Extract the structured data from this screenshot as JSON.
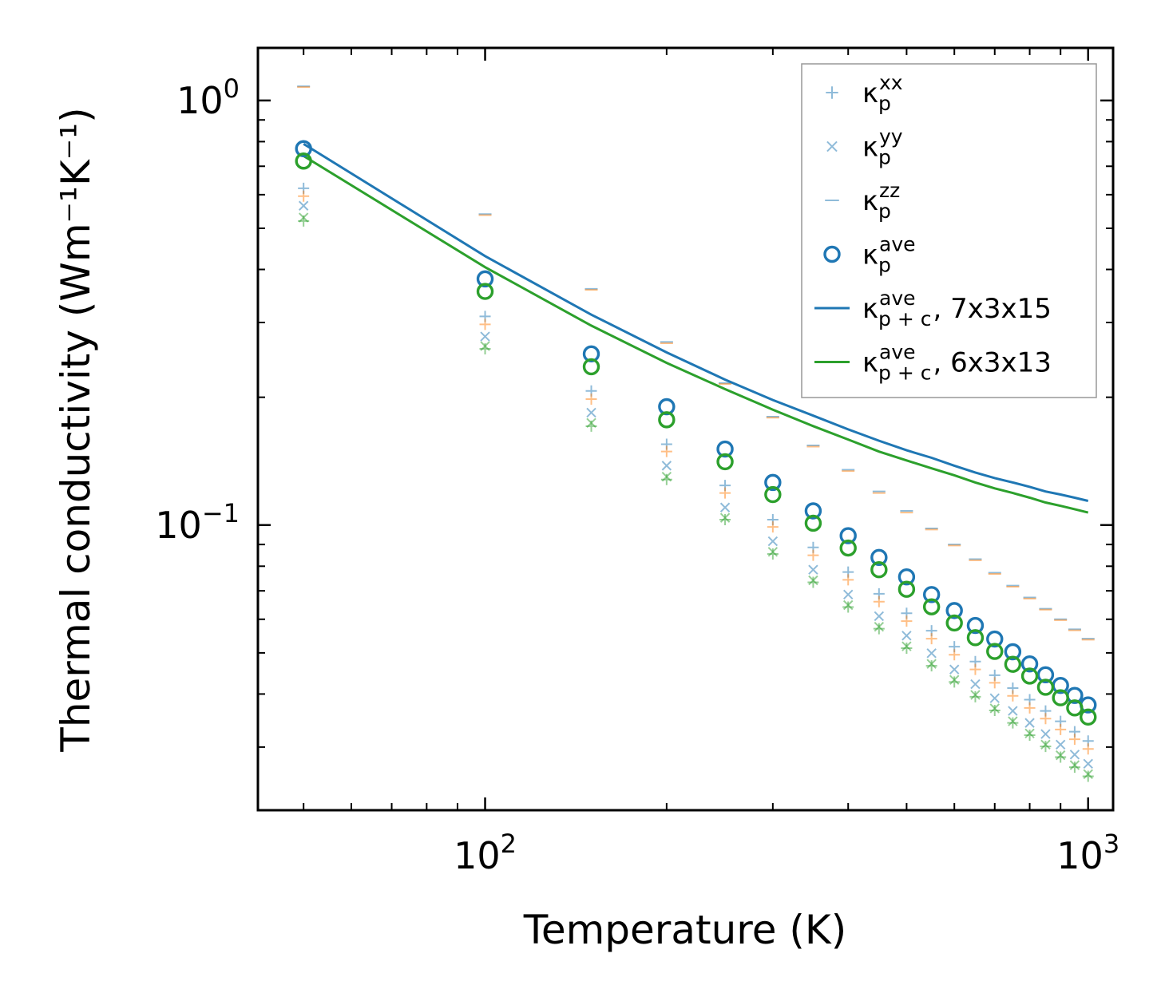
{
  "chart_data": {
    "type": "scatter",
    "xscale": "log",
    "yscale": "log",
    "xlabel": "Temperature (K)",
    "ylabel": "Thermal conductivity (Wm⁻¹K⁻¹)",
    "xlim": [
      42,
      1100
    ],
    "ylim": [
      0.0213,
      1.33
    ],
    "x_ticks": [
      {
        "value": 100,
        "base": "10",
        "exp": "2"
      },
      {
        "value": 1000,
        "base": "10",
        "exp": "3"
      }
    ],
    "y_ticks": [
      {
        "value": 0.1,
        "base": "10",
        "exp": "−1"
      },
      {
        "value": 1,
        "base": "10",
        "exp": "0"
      }
    ],
    "colors": {
      "blue": "#1f77b4",
      "orange": "#ff7f0e",
      "green": "#2ca02c"
    },
    "legend": {
      "position": "top-right",
      "entries": [
        {
          "base": "κ",
          "sub": "p",
          "sup": "xx",
          "suffix": "",
          "marker": "plus",
          "color": "#1f77b4",
          "alpha": 0.5
        },
        {
          "base": "κ",
          "sub": "p",
          "sup": "yy",
          "suffix": "",
          "marker": "x",
          "color": "#1f77b4",
          "alpha": 0.5
        },
        {
          "base": "κ",
          "sub": "p",
          "sup": "zz",
          "suffix": "",
          "marker": "hline",
          "color": "#1f77b4",
          "alpha": 0.5
        },
        {
          "base": "κ",
          "sub": "p",
          "sup": "ave",
          "suffix": "",
          "marker": "circle",
          "color": "#1f77b4",
          "alpha": 1
        },
        {
          "base": "κ",
          "sub": "p + c",
          "sup": "ave",
          "suffix": ", 7x3x15",
          "marker": "line",
          "color": "#1f77b4",
          "alpha": 1
        },
        {
          "base": "κ",
          "sub": "p + c",
          "sup": "ave",
          "suffix": ", 6x3x13",
          "marker": "line",
          "color": "#2ca02c",
          "alpha": 1
        }
      ]
    },
    "x": [
      50,
      100,
      150,
      200,
      250,
      300,
      350,
      400,
      450,
      500,
      550,
      600,
      650,
      700,
      750,
      800,
      850,
      900,
      950,
      1000
    ],
    "series": [
      {
        "name": "κ_p^xx (7x3x15)",
        "marker": "plus",
        "color": "#1f77b4",
        "alpha": 0.5,
        "values": [
          0.621,
          0.31,
          0.207,
          0.155,
          0.124,
          0.103,
          0.0886,
          0.0775,
          0.0689,
          0.062,
          0.0564,
          0.0517,
          0.0477,
          0.0443,
          0.0413,
          0.0388,
          0.0365,
          0.0345,
          0.0326,
          0.031
        ]
      },
      {
        "name": "κ_p^yy (7x3x15)",
        "marker": "x",
        "color": "#1f77b4",
        "alpha": 0.5,
        "values": [
          0.565,
          0.278,
          0.184,
          0.138,
          0.11,
          0.0916,
          0.0785,
          0.0686,
          0.061,
          0.0549,
          0.0499,
          0.0457,
          0.0422,
          0.0391,
          0.0365,
          0.0342,
          0.0322,
          0.0304,
          0.0288,
          0.0274
        ]
      },
      {
        "name": "κ_p^zz (7x3x15)",
        "marker": "hline",
        "color": "#1f77b4",
        "alpha": 0.5,
        "values": [
          1.08,
          0.54,
          0.36,
          0.27,
          0.216,
          0.18,
          0.154,
          0.135,
          0.12,
          0.108,
          0.0982,
          0.09,
          0.0831,
          0.0772,
          0.072,
          0.0675,
          0.0635,
          0.06,
          0.0568,
          0.054
        ]
      },
      {
        "name": "κ_p^xx (6x3x13)",
        "marker": "plus",
        "color": "#ff7f0e",
        "alpha": 0.5,
        "values": [
          0.595,
          0.297,
          0.198,
          0.149,
          0.119,
          0.099,
          0.0849,
          0.0743,
          0.066,
          0.0594,
          0.054,
          0.0495,
          0.0457,
          0.0425,
          0.0396,
          0.0371,
          0.035,
          0.033,
          0.0313,
          0.0297
        ]
      },
      {
        "name": "κ_p^yy (6x3x13)",
        "marker": "x",
        "color": "#2ca02c",
        "alpha": 0.5,
        "values": [
          0.53,
          0.264,
          0.174,
          0.13,
          0.104,
          0.0865,
          0.0741,
          0.0648,
          0.0576,
          0.0518,
          0.0471,
          0.0432,
          0.0398,
          0.037,
          0.0345,
          0.0323,
          0.0304,
          0.0287,
          0.0272,
          0.0259
        ]
      },
      {
        "name": "κ_p^yy' (6x3x13)",
        "marker": "plus",
        "color": "#2ca02c",
        "alpha": 0.5,
        "values": [
          0.52,
          0.26,
          0.171,
          0.128,
          0.103,
          0.0855,
          0.0733,
          0.0641,
          0.057,
          0.0513,
          0.0466,
          0.0427,
          0.0394,
          0.0366,
          0.0342,
          0.032,
          0.0301,
          0.0284,
          0.0269,
          0.0256
        ]
      },
      {
        "name": "κ_p^zz (6x3x13)",
        "marker": "hline",
        "color": "#ff7f0e",
        "alpha": 0.5,
        "values": [
          1.075,
          0.537,
          0.358,
          0.268,
          0.215,
          0.179,
          0.153,
          0.134,
          0.119,
          0.107,
          0.0976,
          0.0895,
          0.0826,
          0.0767,
          0.0716,
          0.0671,
          0.0632,
          0.0597,
          0.0565,
          0.0537
        ]
      },
      {
        "name": "κ_p^ave (7x3x15)",
        "marker": "circle",
        "color": "#1f77b4",
        "alpha": 1,
        "values": [
          0.77,
          0.38,
          0.253,
          0.19,
          0.151,
          0.126,
          0.108,
          0.0944,
          0.0839,
          0.0755,
          0.0686,
          0.0629,
          0.058,
          0.0539,
          0.0503,
          0.0471,
          0.0444,
          0.0419,
          0.0397,
          0.0377
        ]
      },
      {
        "name": "κ_p^ave (6x3x13)",
        "marker": "circle",
        "color": "#2ca02c",
        "alpha": 1,
        "values": [
          0.72,
          0.355,
          0.236,
          0.177,
          0.141,
          0.118,
          0.101,
          0.0883,
          0.0785,
          0.0706,
          0.0642,
          0.0588,
          0.0543,
          0.0504,
          0.047,
          0.0441,
          0.0415,
          0.0392,
          0.0371,
          0.0353
        ]
      },
      {
        "name": "κ_p+c^ave, 7x3x15",
        "marker": "line",
        "color": "#1f77b4",
        "alpha": 1,
        "values": [
          0.79,
          0.43,
          0.313,
          0.255,
          0.22,
          0.197,
          0.181,
          0.168,
          0.158,
          0.15,
          0.144,
          0.138,
          0.133,
          0.129,
          0.126,
          0.123,
          0.12,
          0.118,
          0.116,
          0.114
        ]
      },
      {
        "name": "κ_p+c^ave, 6x3x13",
        "marker": "line",
        "color": "#2ca02c",
        "alpha": 1,
        "values": [
          0.74,
          0.405,
          0.295,
          0.241,
          0.209,
          0.187,
          0.171,
          0.159,
          0.149,
          0.142,
          0.136,
          0.131,
          0.126,
          0.122,
          0.119,
          0.116,
          0.113,
          0.111,
          0.109,
          0.107
        ]
      }
    ]
  }
}
